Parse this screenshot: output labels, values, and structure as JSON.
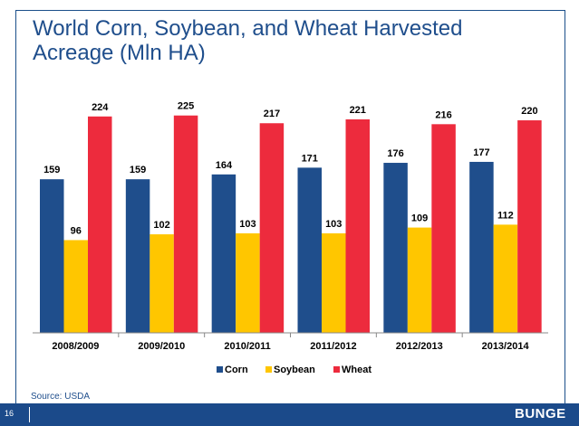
{
  "slide": {
    "title": "World Corn, Soybean, and Wheat Harvested Acreage (Mln HA)",
    "source": "Source: USDA",
    "page_number": "16",
    "logo_text": "BUNGE"
  },
  "chart_data": {
    "type": "bar",
    "title": "World Corn, Soybean, and Wheat Harvested Acreage (Mln HA)",
    "categories": [
      "2008/2009",
      "2009/2010",
      "2010/2011",
      "2011/2012",
      "2012/2013",
      "2013/2014"
    ],
    "series": [
      {
        "name": "Corn",
        "color": "#1f4e8c",
        "values": [
          159,
          159,
          164,
          171,
          176,
          177
        ]
      },
      {
        "name": "Soybean",
        "color": "#ffc600",
        "values": [
          96,
          102,
          103,
          103,
          109,
          112
        ]
      },
      {
        "name": "Wheat",
        "color": "#ed2b3d",
        "values": [
          224,
          225,
          217,
          221,
          216,
          220
        ]
      }
    ],
    "ylim": [
      0,
      250
    ],
    "grid": false,
    "legend": "bottom",
    "data_labels": true
  }
}
